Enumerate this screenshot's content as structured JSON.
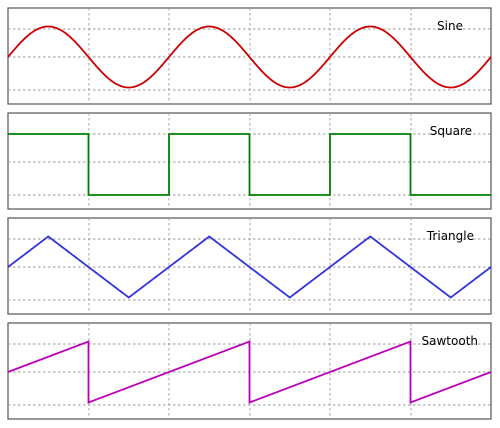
{
  "panels": [
    {
      "id": "sine",
      "label": "Sine",
      "wave": "sine",
      "color": "#cc0000"
    },
    {
      "id": "square",
      "label": "Square",
      "wave": "square",
      "color": "#008000"
    },
    {
      "id": "triangle",
      "label": "Triangle",
      "wave": "triangle",
      "color": "#3333dd"
    },
    {
      "id": "sawtooth",
      "label": "Sawtooth",
      "wave": "sawtooth",
      "color": "#bb00bb"
    }
  ],
  "cycles": 3,
  "grid": true
}
